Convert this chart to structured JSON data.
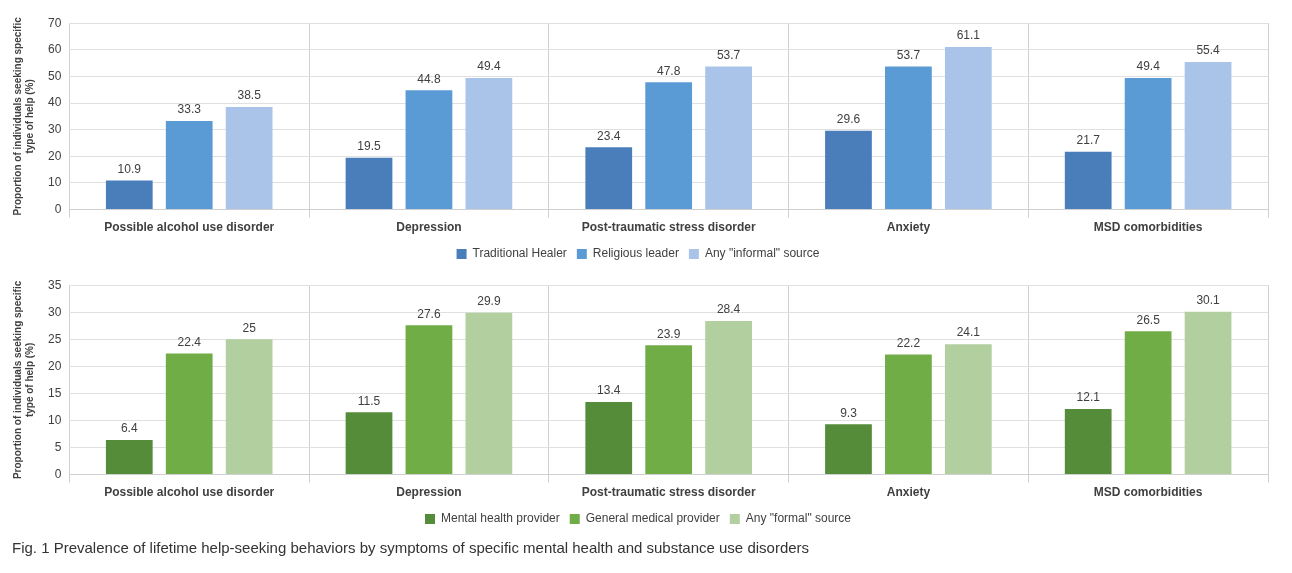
{
  "chart_data": [
    {
      "type": "bar",
      "ylabel": "Proportion of individuals seeking specific type of help (%)",
      "categories": [
        "Possible alcohol use disorder",
        "Depression",
        "Post-traumatic stress disorder",
        "Anxiety",
        "MSD comorbidities"
      ],
      "series": [
        {
          "name": "Traditional Healer",
          "color": "#4a7ebb",
          "values": [
            10.9,
            19.5,
            23.4,
            29.6,
            21.7
          ]
        },
        {
          "name": "Religious leader",
          "color": "#5b9bd5",
          "values": [
            33.3,
            44.8,
            47.8,
            53.7,
            49.4
          ]
        },
        {
          "name": "Any \"informal\" source",
          "color": "#a9c4e8",
          "values": [
            38.5,
            49.4,
            53.7,
            61.1,
            55.4
          ]
        }
      ],
      "ylim": [
        0,
        70
      ],
      "yticks": [
        0,
        10,
        20,
        30,
        40,
        50,
        60,
        70
      ],
      "grid": true,
      "legend": "bottom",
      "data_labels": true
    },
    {
      "type": "bar",
      "ylabel": "Proportion of individuals seeking specific type of help (%)",
      "categories": [
        "Possible alcohol use disorder",
        "Depression",
        "Post-traumatic stress disorder",
        "Anxiety",
        "MSD comorbidities"
      ],
      "series": [
        {
          "name": "Mental health provider",
          "color": "#548c3a",
          "values": [
            6.4,
            11.5,
            13.4,
            9.3,
            12.1
          ]
        },
        {
          "name": "General medical provider",
          "color": "#70ad47",
          "values": [
            22.4,
            27.6,
            23.9,
            22.2,
            26.5
          ]
        },
        {
          "name": "Any \"formal\" source",
          "color": "#b2cfa0",
          "values": [
            25,
            29.9,
            28.4,
            24.1,
            30.1
          ]
        }
      ],
      "ylim": [
        0,
        35
      ],
      "yticks": [
        0,
        5,
        10,
        15,
        20,
        25,
        30,
        35
      ],
      "grid": true,
      "legend": "bottom",
      "data_labels": true,
      "annotations": [
        "Fig. 1 Prevalence of lifetime help-seeking behaviors by symptoms of specific mental health and substance use disorders"
      ]
    }
  ]
}
